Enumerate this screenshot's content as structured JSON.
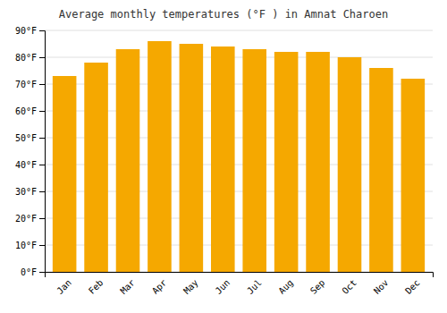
{
  "chart_data": {
    "type": "bar",
    "title": "Average monthly temperatures (°F ) in Amnat Charoen",
    "categories": [
      "Jan",
      "Feb",
      "Mar",
      "Apr",
      "May",
      "Jun",
      "Jul",
      "Aug",
      "Sep",
      "Oct",
      "Nov",
      "Dec"
    ],
    "values": [
      73,
      78,
      83,
      86,
      85,
      84,
      83,
      82,
      82,
      80,
      76,
      72
    ],
    "color": "#F5A800",
    "ylim": [
      0,
      90
    ],
    "yticks": [
      {
        "value": 0,
        "label": "0°F"
      },
      {
        "value": 10,
        "label": "10°F"
      },
      {
        "value": 20,
        "label": "20°F"
      },
      {
        "value": 30,
        "label": "30°F"
      },
      {
        "value": 40,
        "label": "40°F"
      },
      {
        "value": 50,
        "label": "50°F"
      },
      {
        "value": 60,
        "label": "60°F"
      },
      {
        "value": 70,
        "label": "70°F"
      },
      {
        "value": 80,
        "label": "80°F"
      },
      {
        "value": 90,
        "label": "90°F"
      }
    ],
    "grid": true
  }
}
